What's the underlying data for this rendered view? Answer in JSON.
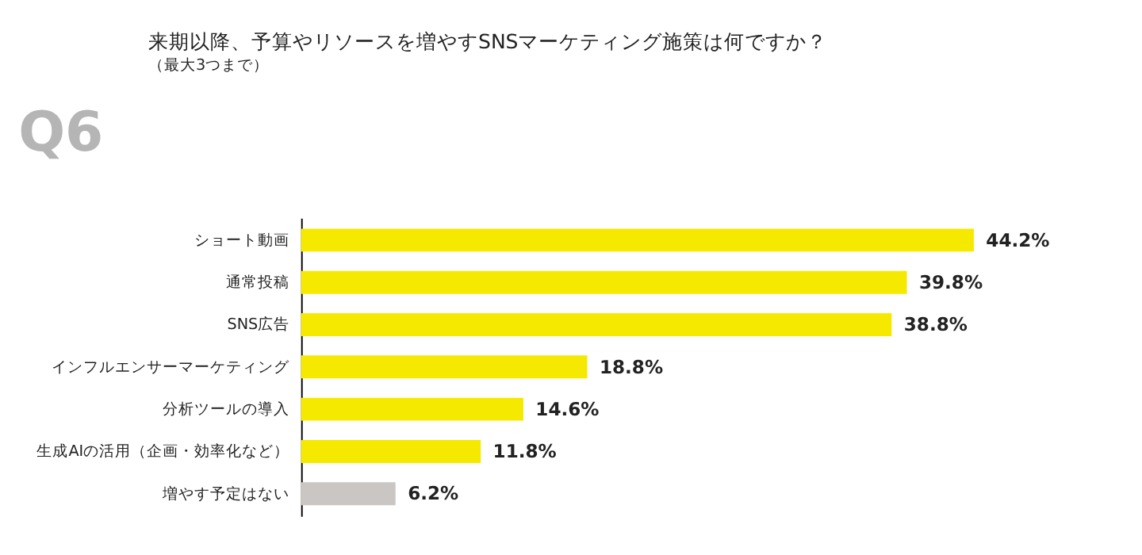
{
  "chart_data": {
    "type": "bar",
    "orientation": "horizontal",
    "title": "来期以降、予算やリソースを増やすSNSマーケティング施策は何ですか？",
    "subtitle": "（最大3つまで）",
    "annotations": [
      "Q6"
    ],
    "categories": [
      "ショート動画",
      "通常投稿",
      "SNS広告",
      "インフルエンサーマーケティング",
      "分析ツールの導入",
      "生成AIの活用（企画・効率化など）",
      "増やす予定はない"
    ],
    "values": [
      44.2,
      39.8,
      38.8,
      18.8,
      14.6,
      11.8,
      6.2
    ],
    "colors": [
      "#f5e900",
      "#f5e900",
      "#f5e900",
      "#f5e900",
      "#f5e900",
      "#f5e900",
      "#c9c6c3"
    ],
    "value_labels": [
      "44.2%",
      "39.8%",
      "38.8%",
      "18.8%",
      "14.6%",
      "11.8%",
      "6.2%"
    ],
    "grid": false
  }
}
